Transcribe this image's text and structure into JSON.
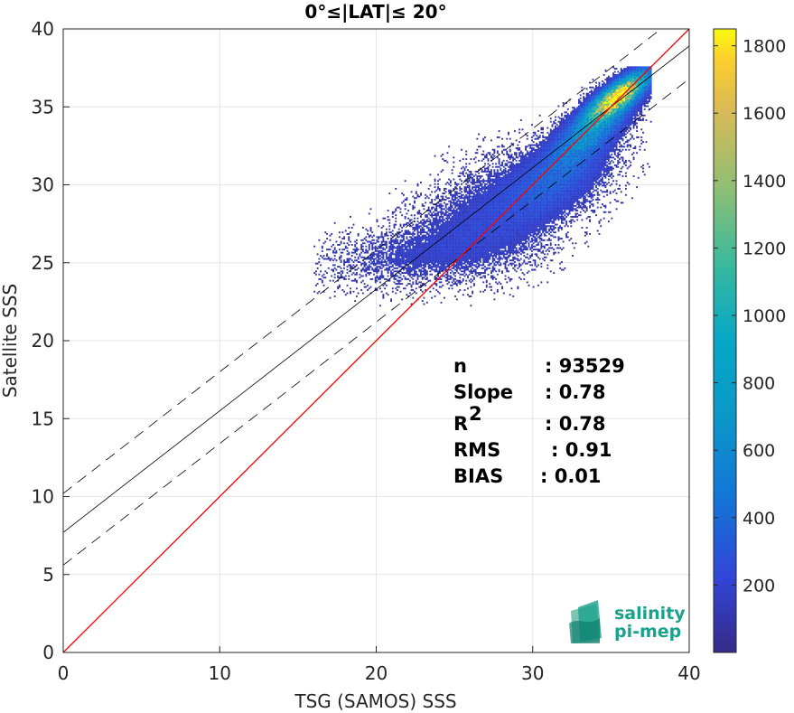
{
  "chart_data": {
    "type": "heatmap",
    "title": "0°≤|LAT|≤ 20°",
    "xlabel": "TSG (SAMOS) SSS",
    "ylabel": "Satellite SSS",
    "xlim": [
      0,
      40
    ],
    "ylim": [
      0,
      40
    ],
    "xticks": [
      "0",
      "10",
      "20",
      "30",
      "40"
    ],
    "yticks": [
      "0",
      "5",
      "10",
      "15",
      "20",
      "25",
      "30",
      "35",
      "40"
    ],
    "grid": true,
    "colorbar": {
      "min": 0,
      "max": 1850,
      "ticks": [
        "200",
        "400",
        "600",
        "800",
        "1000",
        "1200",
        "1400",
        "1600",
        "1800"
      ],
      "colormap": "parula"
    },
    "lines": {
      "identity": {
        "slope": 1,
        "intercept": 0,
        "color": "#ff0000"
      },
      "fit": {
        "slope": 0.78,
        "intercept": 7.7,
        "color": "#000000"
      },
      "fit_upper_dashed": {
        "slope": 0.78,
        "intercept": 10.2
      },
      "fit_lower_dashed": {
        "slope": 0.78,
        "intercept": 5.6
      }
    },
    "stats": [
      {
        "label": "n",
        "value": ": 93529",
        "sup": ""
      },
      {
        "label": "Slope",
        "value": ": 0.78",
        "sup": ""
      },
      {
        "label": "R",
        "value": ": 0.78",
        "sup": "2"
      },
      {
        "label": "RMS",
        "value": ": 0.91",
        "sup": ""
      },
      {
        "label": "BIAS",
        "value": ": 0.01",
        "sup": ""
      }
    ],
    "density_clusters": [
      {
        "x": 35.4,
        "y": 35.6,
        "sx": 1.1,
        "sy": 0.9,
        "rho": 0.8,
        "weight": 1800
      },
      {
        "x": 33.8,
        "y": 33.6,
        "sx": 1.5,
        "sy": 1.4,
        "rho": 0.75,
        "weight": 450
      },
      {
        "x": 31.5,
        "y": 30.5,
        "sx": 2.0,
        "sy": 1.6,
        "rho": 0.55,
        "weight": 160
      },
      {
        "x": 28.0,
        "y": 28.5,
        "sx": 3.0,
        "sy": 2.0,
        "rho": 0.4,
        "weight": 60
      },
      {
        "x": 21.5,
        "y": 25.3,
        "sx": 3.0,
        "sy": 1.1,
        "rho": 0.2,
        "weight": 45
      },
      {
        "x": 26.5,
        "y": 26.5,
        "sx": 2.5,
        "sy": 1.5,
        "rho": 0.2,
        "weight": 40
      }
    ]
  },
  "logo": {
    "line1": "salinity",
    "line2": "pi-mep"
  }
}
